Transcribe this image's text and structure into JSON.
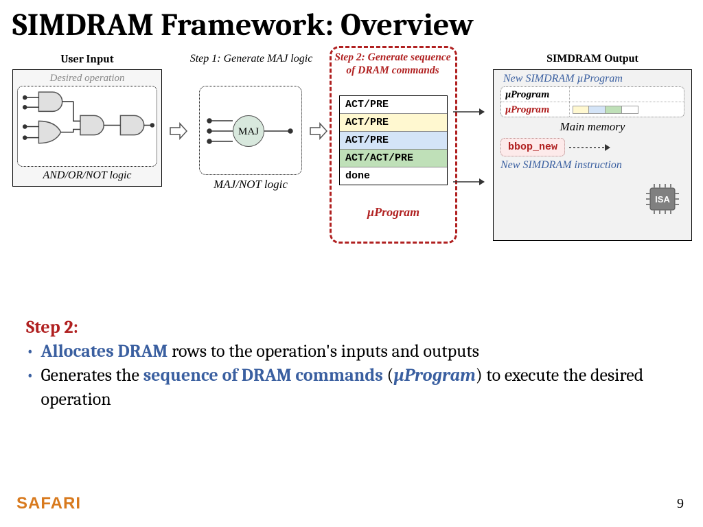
{
  "title": "SIMDRAM Framework: Overview",
  "user_input": {
    "heading": "User Input",
    "desired": "Desired operation",
    "caption": "AND/OR/NOT logic"
  },
  "step1": {
    "heading": "Step 1: Generate MAJ logic",
    "node": "MAJ",
    "caption": "MAJ/NOT logic"
  },
  "step2": {
    "heading": "Step 2: Generate sequence of DRAM commands",
    "rows": [
      {
        "text": "ACT/PRE",
        "bg": "#ffffff"
      },
      {
        "text": "ACT/PRE",
        "bg": "#fff8d0"
      },
      {
        "text": "ACT/PRE",
        "bg": "#d4e4f7"
      },
      {
        "text": "ACT/ACT/PRE",
        "bg": "#bfe0b8"
      },
      {
        "text": "done",
        "bg": "#ffffff"
      }
    ],
    "caption": "µProgram"
  },
  "output": {
    "heading": "SIMDRAM Output",
    "new_uprog": "New SIMDRAM µProgram",
    "mem_rows": [
      {
        "label": "µProgram",
        "color": "#000000",
        "bars": []
      },
      {
        "label": "µProgram",
        "color": "#b02020",
        "bars": [
          "#fff8d0",
          "#d4e4f7",
          "#bfe0b8",
          "#ffffff"
        ]
      }
    ],
    "main_memory": "Main memory",
    "bbop": "bbop_new",
    "isa": "ISA",
    "instr": "New SIMDRAM instruction"
  },
  "body": {
    "step_head": "Step 2:",
    "line1_a": "Allocates DRAM",
    "line1_b": " rows to the operation's inputs and outputs",
    "line2_a": "Generates the ",
    "line2_b": "sequence of DRAM commands",
    "line2_c": " (",
    "line2_d": "µProgram",
    "line2_e": ") to execute the desired operation"
  },
  "footer": {
    "logo": "SAFARI",
    "page": "9"
  },
  "colors": {
    "red": "#b02020",
    "blue": "#3a5fa0",
    "orange": "#d87a1e"
  }
}
